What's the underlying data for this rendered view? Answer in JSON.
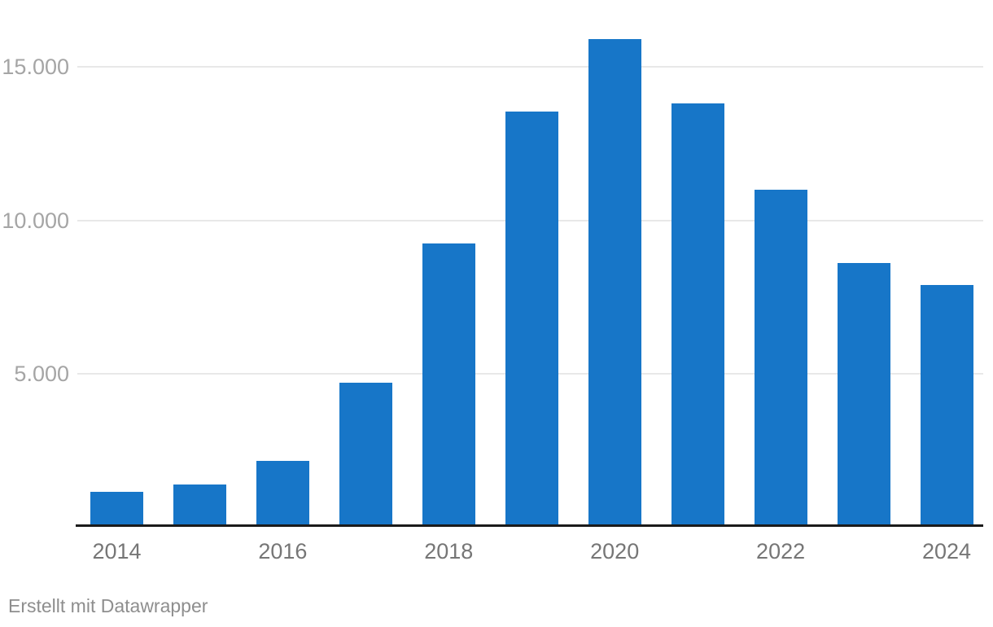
{
  "chart_data": {
    "type": "bar",
    "categories": [
      "2014",
      "2015",
      "2016",
      "2017",
      "2018",
      "2019",
      "2020",
      "2021",
      "2022",
      "2023",
      "2024"
    ],
    "values": [
      1150,
      1400,
      2150,
      4700,
      9250,
      13550,
      15900,
      13800,
      11000,
      8600,
      7900
    ],
    "series_name": "",
    "title": "",
    "xlabel": "",
    "ylabel": "",
    "ylim": [
      0,
      16600
    ],
    "yticks": [
      {
        "value": 5000,
        "label": "5.000"
      },
      {
        "value": 10000,
        "label": "10.000"
      },
      {
        "value": 15000,
        "label": "15.000"
      }
    ],
    "xtick_labels": [
      "2014",
      "2016",
      "2018",
      "2020",
      "2022",
      "2024"
    ],
    "grid": "horizontal-only",
    "legend_position": "none",
    "bar_color": "#1776c8"
  },
  "colors": {
    "bar": "#1776c8",
    "gridline": "#e8e8e8",
    "axis_line": "#1b1b1b",
    "y_tick_text": "#a5a5a5",
    "x_tick_text": "#767676",
    "attribution_text": "#8e8e8e",
    "background": "#ffffff"
  },
  "footer": {
    "attribution": "Erstellt mit Datawrapper"
  }
}
